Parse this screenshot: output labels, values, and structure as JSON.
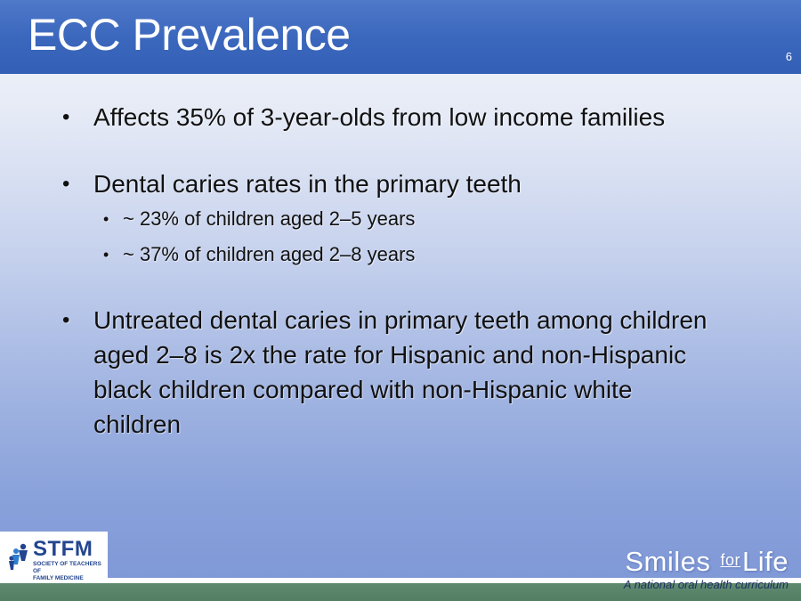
{
  "slide": {
    "title": "ECC Prevalence",
    "number": "6"
  },
  "bullets": [
    {
      "text": "Affects 35% of 3-year-olds from low income families"
    },
    {
      "text": "Dental caries rates in the primary teeth",
      "subitems": [
        "~ 23% of children aged 2–5 years",
        "~ 37% of children aged 2–8 years"
      ]
    },
    {
      "text": "Untreated dental caries in primary teeth among children aged 2–8 is 2x the rate for Hispanic and non-Hispanic black children compared with non-Hispanic white children"
    }
  ],
  "logos": {
    "stfm": {
      "name": "STFM",
      "subtitle_line1": "SOCIETY OF TEACHERS OF",
      "subtitle_line2": "FAMILY MEDICINE",
      "icon": "stfm-people-icon"
    },
    "smiles_for_life": {
      "name_part1": "Smiles",
      "name_part2": "for",
      "name_part3": "Life",
      "tagline": "A national oral health curriculum"
    }
  },
  "colors": {
    "header": "#3b67bd",
    "title_text": "#ffffff",
    "body_text": "#111111",
    "stfm_blue": "#23458f",
    "footer_bar": "#5f8a70"
  }
}
